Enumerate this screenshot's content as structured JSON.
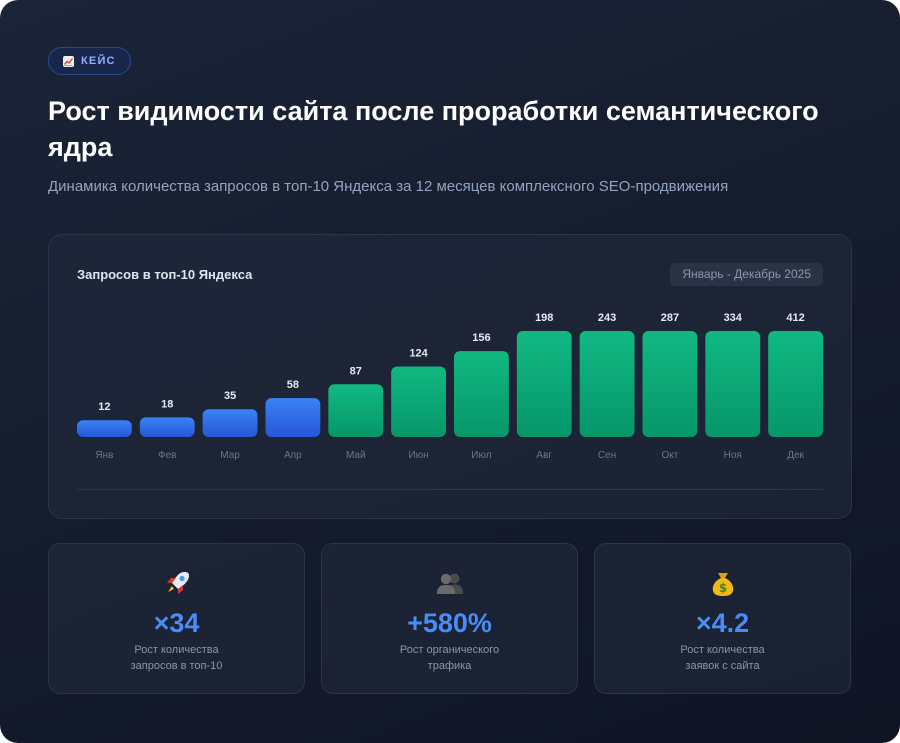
{
  "badge": {
    "icon": "chart-increasing-icon",
    "label": "КЕЙС"
  },
  "title": "Рост видимости сайта после проработки семантического ядра",
  "subtitle": "Динамика количества запросов в топ-10 Яндекса за 12 месяцев комплексного SEO-продвижения",
  "panel": {
    "title": "Запросов в топ-10 Яндекса",
    "period": "Январь - Декабрь 2025"
  },
  "chart_data": {
    "type": "bar",
    "categories": [
      "Янв",
      "Фев",
      "Мар",
      "Апр",
      "Май",
      "Июн",
      "Июл",
      "Авг",
      "Сен",
      "Окт",
      "Ноя",
      "Дек"
    ],
    "values": [
      12,
      18,
      35,
      58,
      87,
      124,
      156,
      198,
      243,
      287,
      334,
      412
    ],
    "title": "Запросов в топ-10 Яндекса",
    "xlabel": "",
    "ylabel": "",
    "colors": {
      "first_months": [
        "#3b82f6",
        "#2557d6"
      ],
      "later_months": [
        "#10b981",
        "#079669"
      ]
    },
    "blue_months": 4,
    "grid": false
  },
  "stats": [
    {
      "icon": "rocket-icon",
      "value": "×34",
      "label_lines": [
        "Рост количества",
        "запросов в топ-10"
      ]
    },
    {
      "icon": "people-icon",
      "value": "+580%",
      "label_lines": [
        "Рост органического",
        "трафика"
      ]
    },
    {
      "icon": "money-bag-icon",
      "value": "×4.2",
      "label_lines": [
        "Рост количества",
        "заявок с сайта"
      ]
    }
  ]
}
